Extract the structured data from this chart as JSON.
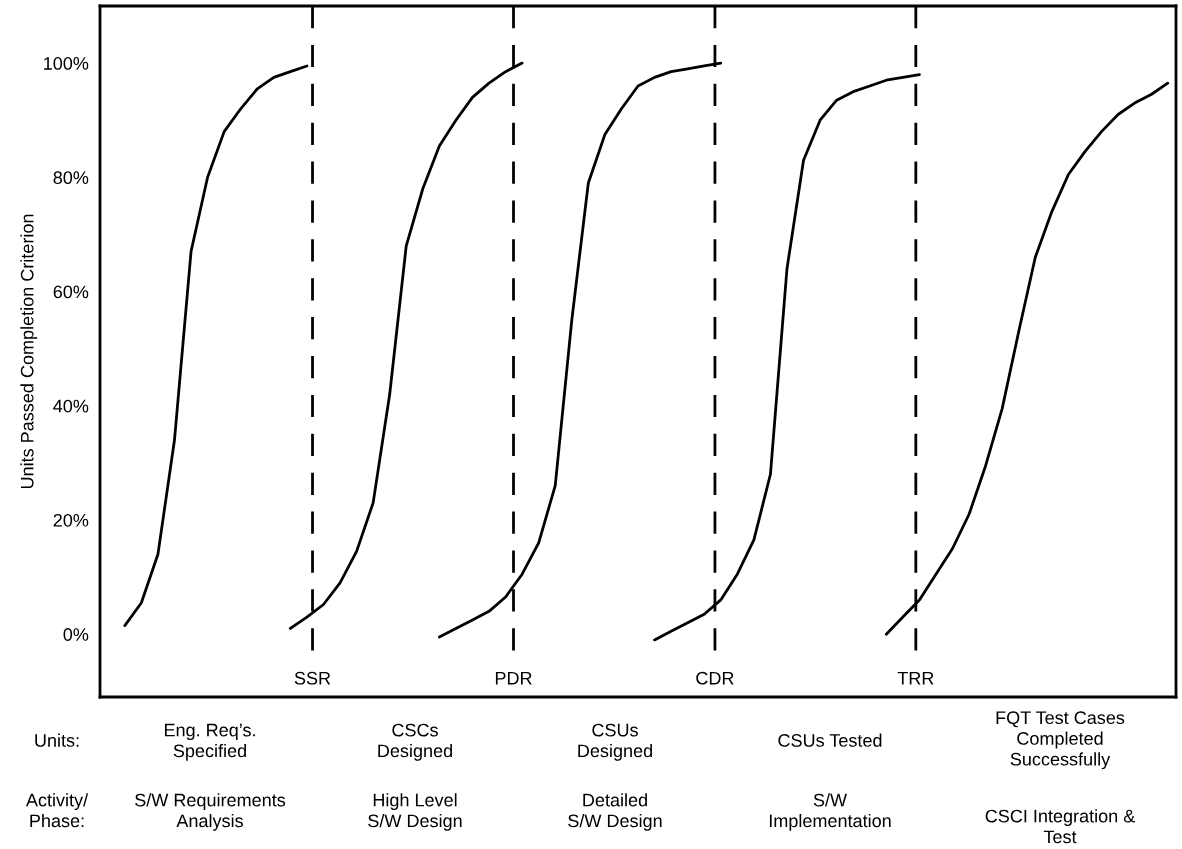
{
  "chart_data": {
    "type": "line",
    "ylabel": "Units Passed Completion Criterion",
    "categories": [
      null,
      null,
      null,
      null,
      null,
      null,
      null,
      null,
      null,
      null,
      null,
      null,
      null,
      null,
      null,
      null,
      null,
      null,
      null,
      null,
      null,
      null,
      null,
      null,
      null,
      null,
      null,
      null,
      null,
      null,
      null,
      null,
      null,
      null,
      null,
      null,
      null,
      null,
      null,
      null,
      null,
      null,
      null,
      null,
      null,
      null,
      null,
      null,
      null,
      null,
      null,
      null,
      null,
      null,
      null,
      null,
      null,
      null,
      null,
      null,
      null,
      null,
      null,
      null,
      null
    ],
    "ylim": [
      -11,
      110
    ],
    "yticks": [
      {
        "value": 0,
        "label": "0%"
      },
      {
        "value": 20,
        "label": "20%"
      },
      {
        "value": 40,
        "label": "40%"
      },
      {
        "value": 60,
        "label": "60%"
      },
      {
        "value": 80,
        "label": "80%"
      },
      {
        "value": 100,
        "label": "100%"
      }
    ],
    "tick_labels": "y",
    "marker": "none",
    "line_style": "solid",
    "series": [
      {
        "color": "#000000",
        "values": [
          null,
          1.5,
          5.5,
          14,
          34,
          67,
          80,
          88,
          92,
          95.5,
          97.5,
          98.5,
          99.5,
          null,
          null,
          null,
          null,
          null,
          null,
          null,
          null,
          null,
          null,
          null,
          null,
          null,
          null,
          null,
          null,
          null,
          null,
          null,
          null,
          null,
          null,
          null,
          null,
          null,
          null,
          null,
          null,
          null,
          null,
          null,
          null,
          null,
          null,
          null,
          null,
          null,
          null,
          null,
          null,
          null,
          null,
          null,
          null,
          null,
          null,
          null,
          null,
          null,
          null,
          null,
          null
        ]
      },
      {
        "color": "#000000",
        "values": [
          null,
          null,
          null,
          null,
          null,
          null,
          null,
          null,
          null,
          null,
          null,
          1,
          3,
          5.2,
          9,
          14.5,
          23,
          42,
          68,
          78,
          85.5,
          90,
          94,
          96.5,
          98.5,
          100,
          null,
          null,
          null,
          null,
          null,
          null,
          null,
          null,
          null,
          null,
          null,
          null,
          null,
          null,
          null,
          null,
          null,
          null,
          null,
          null,
          null,
          null,
          null,
          null,
          null,
          null,
          null,
          null,
          null,
          null,
          null,
          null,
          null,
          null,
          null,
          null,
          null,
          null,
          null
        ]
      },
      {
        "color": "#000000",
        "values": [
          null,
          null,
          null,
          null,
          null,
          null,
          null,
          null,
          null,
          null,
          null,
          null,
          null,
          null,
          null,
          null,
          null,
          null,
          null,
          null,
          -0.5,
          1,
          2.5,
          4,
          6.5,
          10.5,
          16,
          26,
          55,
          79,
          87.5,
          92,
          96,
          97.5,
          98.5,
          99,
          99.5,
          100,
          null,
          null,
          null,
          null,
          null,
          null,
          null,
          null,
          null,
          null,
          null,
          null,
          null,
          null,
          null,
          null,
          null,
          null,
          null,
          null,
          null,
          null,
          null,
          null,
          null,
          null,
          null
        ]
      },
      {
        "color": "#000000",
        "values": [
          null,
          null,
          null,
          null,
          null,
          null,
          null,
          null,
          null,
          null,
          null,
          null,
          null,
          null,
          null,
          null,
          null,
          null,
          null,
          null,
          null,
          null,
          null,
          null,
          null,
          null,
          null,
          null,
          null,
          null,
          null,
          null,
          null,
          -1,
          0.5,
          2,
          3.5,
          6,
          10.5,
          16.5,
          28,
          64,
          83,
          90,
          93.5,
          95,
          96,
          97,
          97.5,
          98,
          null,
          null,
          null,
          null,
          null,
          null,
          null,
          null,
          null,
          null,
          null,
          null,
          null,
          null,
          null
        ]
      },
      {
        "color": "#000000",
        "values": [
          null,
          null,
          null,
          null,
          null,
          null,
          null,
          null,
          null,
          null,
          null,
          null,
          null,
          null,
          null,
          null,
          null,
          null,
          null,
          null,
          null,
          null,
          null,
          null,
          null,
          null,
          null,
          null,
          null,
          null,
          null,
          null,
          null,
          null,
          null,
          null,
          null,
          null,
          null,
          null,
          null,
          null,
          null,
          null,
          null,
          null,
          null,
          0,
          3,
          6,
          10.5,
          15,
          21,
          29.5,
          39.5,
          53,
          66,
          74,
          80.5,
          84.5,
          88,
          91,
          93,
          94.5,
          96.5
        ]
      }
    ],
    "annotations": [
      "SSR",
      "PDR",
      "CDR",
      "TRR",
      "Units:",
      "Activity/\nPhase:",
      "Eng. Req’s.\nSpecified",
      "S/W Requirements\nAnalysis",
      "CSCs\nDesigned",
      "High Level\nS/W Design",
      "CSUs\nDesigned",
      "Detailed\nS/W Design",
      "CSUs Tested",
      "S/W\nImplementation",
      "FQT Test Cases\nCompleted\nSuccessfully",
      "CSCI Integration &\nTest"
    ]
  }
}
